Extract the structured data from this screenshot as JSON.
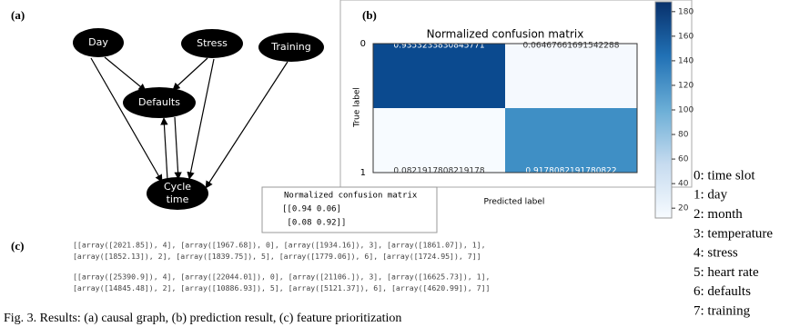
{
  "panel_a": {
    "label": "(a)",
    "nodes": [
      "Day",
      "Stress",
      "Training",
      "Defaults",
      "Cycle time"
    ]
  },
  "panel_b": {
    "label": "(b)",
    "title": "Normalized confusion matrix",
    "y_label": "True label",
    "x_label": "Predicted label",
    "row_ticks": [
      "0",
      "1"
    ],
    "cells": [
      [
        "0.9353233830845771",
        "0.06467661691542288"
      ],
      [
        "0.0821917808219178",
        "0.9178082191780822"
      ]
    ],
    "cell_colors": [
      [
        "#0b4a8f",
        "#f5f9fe"
      ],
      [
        "#f7fbff",
        "#3f8fc5"
      ]
    ],
    "colorbar": {
      "lim": [
        12,
        188
      ],
      "ticks": [
        180,
        160,
        140,
        120,
        100,
        80,
        60,
        40,
        20
      ]
    },
    "printout": [
      "Normalized confusion matrix",
      "[[0.94 0.06]",
      " [0.08 0.92]]"
    ]
  },
  "panel_c": {
    "label": "(c)",
    "lines": [
      "[[array([2021.85]), 4], [array([1967.68]), 0], [array([1934.16]), 3], [array([1861.07]), 1],",
      "[array([1852.13]), 2], [array([1839.75]), 5], [array([1779.06]), 6], [array([1724.95]), 7]]",
      "[[array([25390.9]), 4], [array([22044.01]), 0], [array([21106.]), 3], [array([16625.73]), 1],",
      "[array([14845.48]), 2], [array([10886.93]), 5], [array([5121.37]), 6], [array([4620.99]), 7]]"
    ]
  },
  "feature_legend": [
    "0: time slot",
    "1: day",
    "2: month",
    "3: temperature",
    "4: stress",
    "5: heart rate",
    "6: defaults",
    "7: training"
  ],
  "caption": "Fig. 3. Results: (a) causal graph, (b) prediction result, (c) feature prioritization"
}
